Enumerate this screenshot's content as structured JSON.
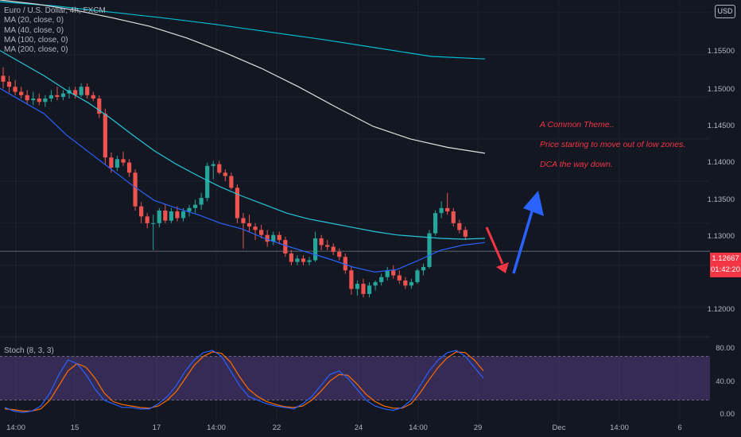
{
  "chart": {
    "symbol_title": "Euro / U.S. Dollar, 4h, FXCM",
    "indicators": [
      "MA (20, close, 0)",
      "MA (40, close, 0)",
      "MA (100, close, 0)",
      "MA (200, close, 0)"
    ],
    "stoch_label": "Stoch (8, 3, 3)",
    "currency_button": "USD",
    "current_price": "1.12667",
    "countdown": "01:42:20",
    "annotations": [
      "A Common Theme..",
      "Price starting to move out of low zones.",
      "DCA the way down."
    ]
  },
  "colors": {
    "background": "#131722",
    "up_candle": "#26a69a",
    "down_candle": "#ef5350",
    "ma20": "#2962ff",
    "ma40": "#26c6da",
    "ma100": "#e0e0e0",
    "ma200": "#00bcd4",
    "stoch_k": "#2962ff",
    "stoch_d": "#ff6d00",
    "stoch_band": "#7e57c2",
    "annotation": "#f23645",
    "arrow_down": "#f23645",
    "arrow_up": "#2962ff"
  },
  "price_axis": {
    "ticks": [
      "1.15500",
      "1.15000",
      "1.14500",
      "1.14000",
      "1.13500",
      "1.13000",
      "1.12000"
    ]
  },
  "stoch_axis": {
    "ticks": [
      "80.00",
      "40.00",
      "0.00"
    ]
  },
  "time_axis": {
    "labels": [
      "14:00",
      "15",
      "17",
      "14:00",
      "22",
      "24",
      "14:00",
      "29",
      "Dec",
      "14:00",
      "6"
    ]
  },
  "chart_data": [
    {
      "type": "candlestick",
      "title": "Euro / U.S. Dollar, 4h, FXCM",
      "ylim": [
        1.1165,
        1.1565
      ],
      "candles": [
        [
          1.1475,
          1.1485,
          1.146,
          1.1468
        ],
        [
          1.1468,
          1.1475,
          1.1455,
          1.1462
        ],
        [
          1.1462,
          1.147,
          1.1452,
          1.1456
        ],
        [
          1.1456,
          1.1462,
          1.1448,
          1.1452
        ],
        [
          1.1452,
          1.1458,
          1.1442,
          1.1446
        ],
        [
          1.1446,
          1.1456,
          1.144,
          1.1448
        ],
        [
          1.1448,
          1.1454,
          1.144,
          1.1444
        ],
        [
          1.1444,
          1.1452,
          1.1438,
          1.1448
        ],
        [
          1.1448,
          1.1458,
          1.1444,
          1.1452
        ],
        [
          1.1452,
          1.1462,
          1.1446,
          1.145
        ],
        [
          1.145,
          1.1458,
          1.1446,
          1.1454
        ],
        [
          1.1454,
          1.1462,
          1.1448,
          1.1458
        ],
        [
          1.1458,
          1.1462,
          1.1448,
          1.1452
        ],
        [
          1.1452,
          1.1466,
          1.145,
          1.1462
        ],
        [
          1.1462,
          1.1466,
          1.1448,
          1.1452
        ],
        [
          1.1452,
          1.1456,
          1.1445,
          1.1448
        ],
        [
          1.1448,
          1.1452,
          1.1425,
          1.143
        ],
        [
          1.143,
          1.1436,
          1.137,
          1.1378
        ],
        [
          1.1378,
          1.1384,
          1.136,
          1.1366
        ],
        [
          1.1366,
          1.138,
          1.1362,
          1.1376
        ],
        [
          1.1376,
          1.1385,
          1.1368,
          1.1372
        ],
        [
          1.1372,
          1.1376,
          1.1355,
          1.136
        ],
        [
          1.136,
          1.1364,
          1.1315,
          1.132
        ],
        [
          1.132,
          1.1325,
          1.13,
          1.1308
        ],
        [
          1.1308,
          1.1312,
          1.1294,
          1.13
        ],
        [
          1.13,
          1.131,
          1.1268,
          1.13
        ],
        [
          1.13,
          1.1318,
          1.1295,
          1.1315
        ],
        [
          1.1315,
          1.1322,
          1.13,
          1.1303
        ],
        [
          1.1303,
          1.1318,
          1.13,
          1.1314
        ],
        [
          1.1314,
          1.132,
          1.1302,
          1.1306
        ],
        [
          1.1306,
          1.1318,
          1.1302,
          1.1314
        ],
        [
          1.1314,
          1.1322,
          1.1308,
          1.1318
        ],
        [
          1.1318,
          1.1328,
          1.1312,
          1.1322
        ],
        [
          1.1322,
          1.1336,
          1.1316,
          1.133
        ],
        [
          1.133,
          1.1372,
          1.1326,
          1.1368
        ],
        [
          1.1368,
          1.1374,
          1.1352,
          1.137
        ],
        [
          1.137,
          1.1374,
          1.1358,
          1.136
        ],
        [
          1.136,
          1.1364,
          1.135,
          1.1356
        ],
        [
          1.1356,
          1.136,
          1.134,
          1.1342
        ],
        [
          1.1342,
          1.1346,
          1.13,
          1.1306
        ],
        [
          1.1306,
          1.1312,
          1.127,
          1.13
        ],
        [
          1.13,
          1.131,
          1.129,
          1.1296
        ],
        [
          1.1296,
          1.13,
          1.128,
          1.1292
        ],
        [
          1.1292,
          1.1298,
          1.1282,
          1.1286
        ],
        [
          1.1286,
          1.1292,
          1.1272,
          1.1278
        ],
        [
          1.1278,
          1.129,
          1.1274,
          1.1286
        ],
        [
          1.1286,
          1.129,
          1.1275,
          1.128
        ],
        [
          1.128,
          1.1284,
          1.126,
          1.1264
        ],
        [
          1.1264,
          1.1268,
          1.125,
          1.1254
        ],
        [
          1.1254,
          1.1262,
          1.125,
          1.1258
        ],
        [
          1.1258,
          1.1262,
          1.125,
          1.1254
        ],
        [
          1.1254,
          1.126,
          1.125,
          1.1256
        ],
        [
          1.1256,
          1.129,
          1.1254,
          1.1282
        ],
        [
          1.1282,
          1.1286,
          1.1268,
          1.1274
        ],
        [
          1.1274,
          1.128,
          1.1268,
          1.1272
        ],
        [
          1.1272,
          1.1276,
          1.1262,
          1.1266
        ],
        [
          1.1266,
          1.127,
          1.1256,
          1.126
        ],
        [
          1.126,
          1.1264,
          1.124,
          1.1244
        ],
        [
          1.1244,
          1.1248,
          1.1215,
          1.1222
        ],
        [
          1.1222,
          1.1232,
          1.1214,
          1.1228
        ],
        [
          1.1228,
          1.1234,
          1.1212,
          1.1216
        ],
        [
          1.1216,
          1.123,
          1.1212,
          1.1226
        ],
        [
          1.1226,
          1.1232,
          1.122,
          1.123
        ],
        [
          1.123,
          1.124,
          1.1226,
          1.1236
        ],
        [
          1.1236,
          1.1248,
          1.1232,
          1.1244
        ],
        [
          1.1244,
          1.125,
          1.1234,
          1.1238
        ],
        [
          1.1238,
          1.1244,
          1.1228,
          1.1232
        ],
        [
          1.1232,
          1.1236,
          1.1222,
          1.1226
        ],
        [
          1.1226,
          1.1234,
          1.1222,
          1.123
        ],
        [
          1.123,
          1.1246,
          1.1228,
          1.1244
        ],
        [
          1.1244,
          1.1252,
          1.1238,
          1.1248
        ],
        [
          1.1248,
          1.1292,
          1.1246,
          1.1288
        ],
        [
          1.1288,
          1.1315,
          1.1285,
          1.1312
        ],
        [
          1.1312,
          1.1326,
          1.1306,
          1.1318
        ],
        [
          1.1318,
          1.1336,
          1.131,
          1.1314
        ],
        [
          1.1314,
          1.1318,
          1.1296,
          1.13
        ],
        [
          1.13,
          1.1304,
          1.1288,
          1.1292
        ],
        [
          1.1292,
          1.1296,
          1.128,
          1.1284
        ]
      ],
      "ma20": [
        1.146,
        1.1445,
        1.143,
        1.1405,
        1.1385,
        1.1365,
        1.1345,
        1.1327,
        1.1318,
        1.131,
        1.13,
        1.1293,
        1.1282,
        1.1273,
        1.1265,
        1.1257,
        1.1248,
        1.1242,
        1.1245,
        1.1256,
        1.1268,
        1.1274,
        1.1277
      ],
      "ma40": [
        1.1505,
        1.149,
        1.1475,
        1.1458,
        1.1443,
        1.1425,
        1.1405,
        1.1386,
        1.137,
        1.1356,
        1.1343,
        1.1332,
        1.1322,
        1.1312,
        1.1305,
        1.13,
        1.1295,
        1.129,
        1.1286,
        1.1284,
        1.1282,
        1.1281,
        1.1282
      ],
      "ma100": [
        1.1565,
        1.156,
        1.1553,
        1.1544,
        1.1534,
        1.152,
        1.1503,
        1.1484,
        1.1462,
        1.1438,
        1.1415,
        1.14,
        1.139,
        1.1383
      ],
      "ma200": [
        1.1563,
        1.1558,
        1.1551,
        1.1544,
        1.1536,
        1.1527,
        1.1518,
        1.1508,
        1.1498,
        1.1495
      ],
      "current_price": 1.12667
    },
    {
      "type": "line",
      "title": "Stoch (8, 3, 3)",
      "ylim": [
        0,
        100
      ],
      "bands": [
        20,
        80
      ],
      "series": [
        {
          "name": "%K",
          "values": [
            10,
            5,
            3,
            5,
            12,
            30,
            55,
            75,
            70,
            55,
            35,
            20,
            15,
            10,
            10,
            8,
            8,
            15,
            25,
            40,
            60,
            75,
            85,
            88,
            80,
            60,
            40,
            25,
            20,
            15,
            12,
            10,
            8,
            15,
            25,
            40,
            55,
            60,
            50,
            35,
            20,
            12,
            8,
            6,
            10,
            20,
            40,
            60,
            75,
            85,
            88,
            80,
            65,
            50
          ]
        },
        {
          "name": "%D",
          "values": [
            8,
            7,
            5,
            5,
            8,
            20,
            40,
            60,
            70,
            65,
            50,
            30,
            18,
            14,
            12,
            10,
            9,
            12,
            20,
            32,
            50,
            68,
            80,
            86,
            84,
            72,
            52,
            35,
            25,
            18,
            14,
            11,
            10,
            12,
            20,
            32,
            46,
            55,
            54,
            42,
            28,
            18,
            12,
            9,
            9,
            15,
            30,
            48,
            65,
            78,
            86,
            85,
            75,
            60
          ]
        }
      ]
    }
  ]
}
